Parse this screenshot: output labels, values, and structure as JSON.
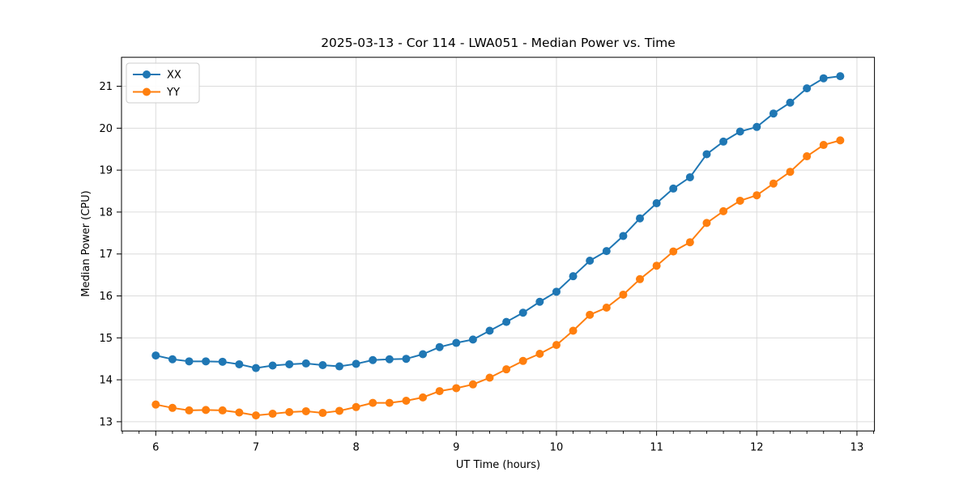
{
  "chart_data": {
    "type": "line",
    "title": "2025-03-13 - Cor 114 - LWA051 - Median Power vs. Time",
    "xlabel": "UT Time (hours)",
    "ylabel": "Median Power (CPU)",
    "xlim": [
      5.658,
      13.175
    ],
    "ylim": [
      12.78,
      21.69
    ],
    "x_ticks": [
      6,
      7,
      8,
      9,
      10,
      11,
      12,
      13
    ],
    "y_ticks": [
      13,
      14,
      15,
      16,
      17,
      18,
      19,
      20,
      21
    ],
    "x_minor_step": 0.16667,
    "grid": true,
    "legend_position": "upper-left",
    "background_color": "#ffffff",
    "grid_color": "#dcdcdc",
    "spine_color": "#000000",
    "x": [
      6,
      6.1667,
      6.3333,
      6.5,
      6.6667,
      6.8333,
      7,
      7.1667,
      7.3333,
      7.5,
      7.6667,
      7.8333,
      8,
      8.1667,
      8.3333,
      8.5,
      8.6667,
      8.8333,
      9,
      9.1667,
      9.3333,
      9.5,
      9.6667,
      9.8333,
      10,
      10.1667,
      10.3333,
      10.5,
      10.6667,
      10.8333,
      11,
      11.1667,
      11.3333,
      11.5,
      11.6667,
      11.8333,
      12,
      12.1667,
      12.3333,
      12.5,
      12.6667,
      12.8333
    ],
    "series": [
      {
        "name": "XX",
        "color": "#1f77b4",
        "values": [
          14.58,
          14.49,
          14.44,
          14.44,
          14.43,
          14.37,
          14.28,
          14.34,
          14.37,
          14.39,
          14.35,
          14.32,
          14.38,
          14.47,
          14.49,
          14.5,
          14.61,
          14.78,
          14.88,
          14.96,
          15.17,
          15.38,
          15.6,
          15.86,
          16.1,
          16.47,
          16.84,
          17.07,
          17.43,
          17.85,
          18.21,
          18.56,
          18.83,
          19.38,
          19.68,
          19.92,
          20.03,
          20.35,
          20.61,
          20.95,
          21.19,
          21.24
        ]
      },
      {
        "name": "YY",
        "color": "#ff7f0e",
        "values": [
          13.41,
          13.33,
          13.27,
          13.28,
          13.27,
          13.22,
          13.15,
          13.19,
          13.23,
          13.25,
          13.21,
          13.26,
          13.35,
          13.45,
          13.45,
          13.5,
          13.58,
          13.73,
          13.8,
          13.89,
          14.05,
          14.25,
          14.45,
          14.62,
          14.83,
          15.17,
          15.55,
          15.72,
          16.03,
          16.4,
          16.72,
          17.06,
          17.28,
          17.74,
          18.02,
          18.27,
          18.4,
          18.68,
          18.96,
          19.33,
          19.6,
          19.71
        ]
      }
    ]
  }
}
